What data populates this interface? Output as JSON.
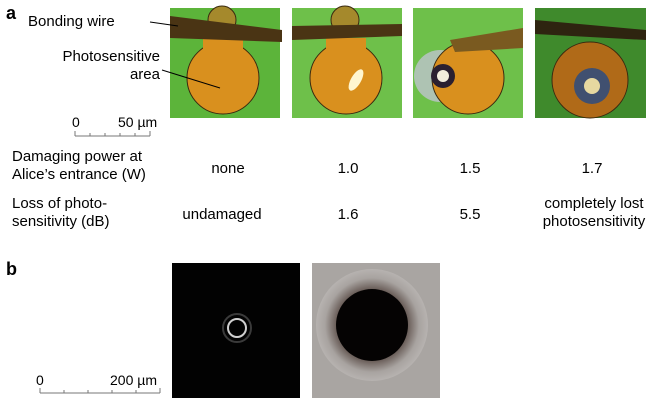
{
  "panel_a": {
    "label": "a",
    "annotations": [
      "Bonding wire",
      "Photosensitive area"
    ],
    "scale": [
      "0",
      "50 µm"
    ],
    "rows": [
      {
        "label": "Damaging power at Alice’s entrance (W)",
        "cells": [
          "none",
          "1.0",
          "1.5",
          "1.7"
        ]
      },
      {
        "label": "Loss of photo-sensitivity (dB)",
        "cells": [
          "undamaged",
          "1.6",
          "5.5",
          "completely lost photosensitivity"
        ]
      }
    ]
  },
  "panel_b": {
    "label": "b",
    "scale": [
      "0",
      "200 µm"
    ]
  }
}
